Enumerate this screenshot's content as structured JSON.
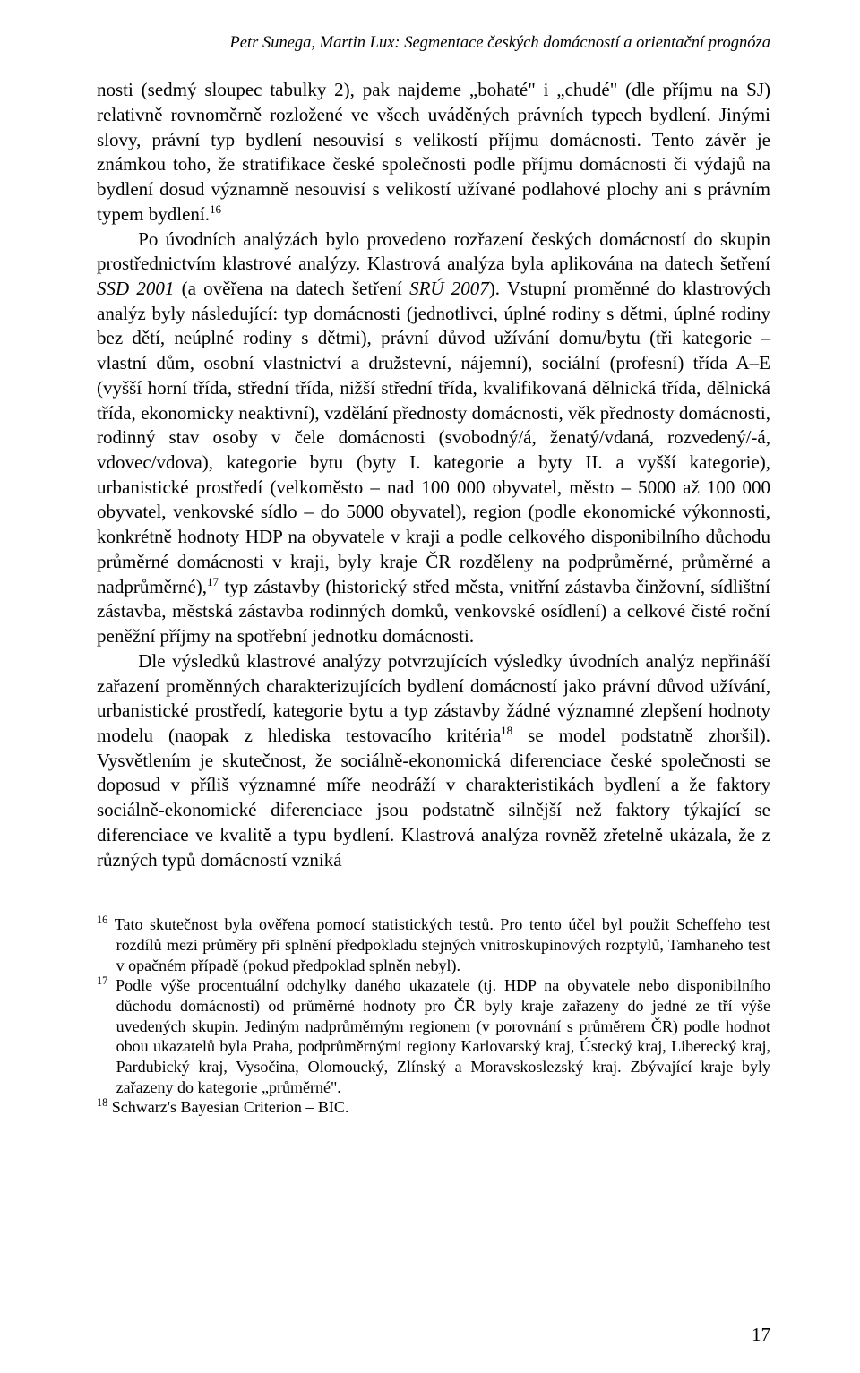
{
  "running_head": "Petr Sunega, Martin Lux: Segmentace českých domácností a orientační prognóza",
  "paragraphs": {
    "p1": "nosti (sedmý sloupec tabulky 2), pak najdeme „bohaté\" i „chudé\" (dle příjmu na SJ) relativně rovnoměrně rozložené ve všech uváděných právních typech bydlení. Jinými slovy, právní typ bydlení nesouvisí s velikostí příjmu domácnosti. Tento závěr je známkou toho, že stratifikace české společnosti podle příjmu domácnosti či výdajů na bydlení dosud významně nesouvisí s velikostí užívané podlahové plochy ani s právním typem bydlení.",
    "p2a": "Po úvodních analýzách bylo provedeno rozřazení českých domácností do skupin prostřednictvím klastrové analýzy. Klastrová analýza byla aplikována na datech šetření ",
    "p2b": "SSD 2001",
    "p2c": " (a ověřena na datech šetření ",
    "p2d": "SRÚ 2007",
    "p2e": "). Vstupní proměnné do klastrových analýz byly následující: typ domácnosti (jednotlivci, úplné rodiny s dětmi, úplné rodiny bez dětí, neúplné rodiny s dětmi), právní důvod užívání domu/bytu (tři kategorie – vlastní dům, osobní vlastnictví a družstevní, nájemní), sociální (profesní) třída A–E (vyšší horní třída, střední třída, nižší střední třída, kvalifikovaná dělnická třída, dělnická třída, ekonomicky neaktivní), vzdělání přednosty domácnosti, věk přednosty domácnosti, rodinný stav osoby v čele domácnosti (svobodný/á, ženatý/vdaná, rozvedený/-á, vdovec/vdova), kategorie bytu (byty I. kategorie a byty II. a vyšší kategorie), urbanistické prostředí (velkoměsto – nad 100 000 obyvatel, město – 5000 až 100 000 obyvatel, venkovské sídlo – do 5000 obyvatel), region (podle ekonomické výkonnosti, konkrétně hodnoty HDP na obyvatele v kraji a podle celkového disponibilního důchodu průměrné domácnosti v kraji, byly kraje ČR rozděleny na podprůměrné, průměrné a nadprůměrné),",
    "p2f": " typ zástavby (historický střed města, vnitřní zástavba činžovní, sídlištní zástavba, městská zástavba rodinných domků, venkovské osídlení) a celkové čisté roční peněžní příjmy na spotřební jednotku domácnosti.",
    "p3a": "Dle výsledků klastrové analýzy potvrzujících výsledky úvodních analýz nepřináší zařazení proměnných charakterizujících bydlení domácností jako právní důvod užívání, urbanistické prostředí, kategorie bytu a typ zástavby žádné významné zlepšení hodnoty modelu (naopak z hlediska testovacího kritéria",
    "p3b": " se model podstatně zhoršil). Vysvětlením je skutečnost, že sociálně-ekonomická diferenciace české společnosti se doposud v příliš významné míře neodráží v charakteristikách bydlení a že faktory sociálně-ekonomické diferenciace jsou podstatně silnější než faktory týkající se diferenciace ve kvalitě a typu bydlení. Klastrová analýza rovněž zřetelně ukázala, že z různých typů domácností vzniká"
  },
  "footnotes": {
    "fn16": "Tato skutečnost byla ověřena pomocí statistických testů. Pro tento účel byl použit Scheffeho test rozdílů mezi průměry při splnění předpokladu stejných vnitroskupinových rozptylů, Tamhaneho test v opačném případě (pokud předpoklad splněn nebyl).",
    "fn17": "Podle výše procentuální odchylky daného ukazatele (tj. HDP na obyvatele nebo disponibilního důchodu domácnosti) od průměrné hodnoty pro ČR byly kraje zařazeny do jedné ze tří výše uvedených skupin. Jediným nadprůměrným regionem (v porovnání s průměrem ČR) podle hodnot obou ukazatelů byla Praha, podprůměrnými regiony Karlovarský kraj, Ústecký kraj, Liberecký kraj, Pardubický kraj, Vysočina, Olomoucký, Zlínský a Moravskoslezský kraj. Zbývající kraje byly zařazeny do kategorie „průměrné\".",
    "fn18": "Schwarz's Bayesian Criterion – BIC."
  },
  "page_number": "17",
  "sup": {
    "n16": "16",
    "n17": "17",
    "n18": "18"
  }
}
